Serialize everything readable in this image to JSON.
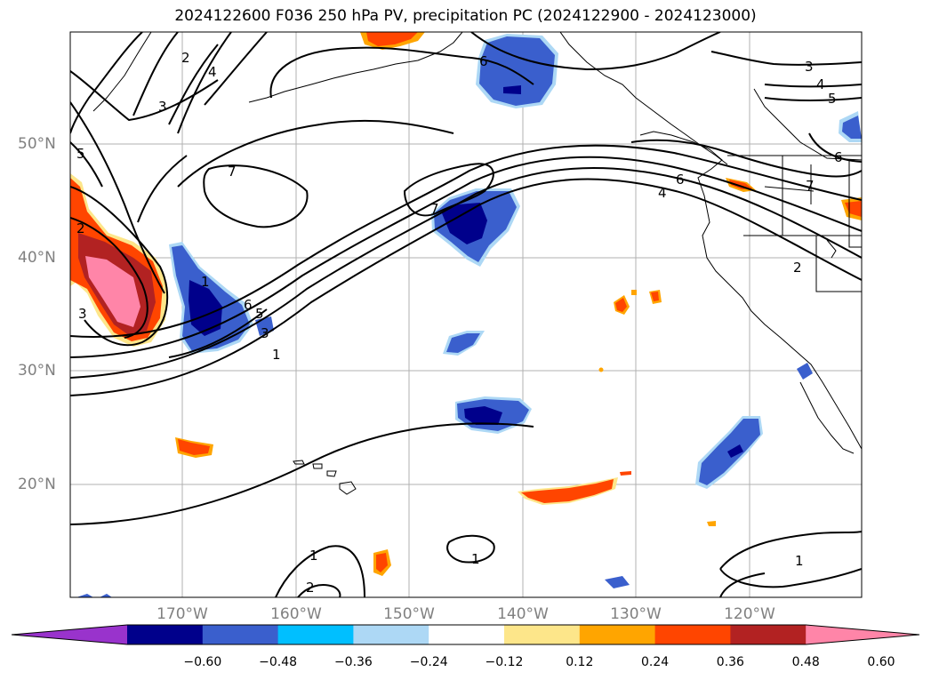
{
  "title": "2024122600 F036 250 hPa PV, precipitation PC (2024122900 - 2024123000)",
  "lat_labels": [
    "50°N",
    "40°N",
    "30°N",
    "20°N"
  ],
  "lon_labels": [
    "170°W",
    "160°W",
    "150°W",
    "140°W",
    "130°W",
    "120°W"
  ],
  "colorbar": {
    "ticks": [
      "−0.60",
      "−0.48",
      "−0.36",
      "−0.24",
      "−0.12",
      "0.12",
      "0.24",
      "0.36",
      "0.48",
      "0.60"
    ],
    "colors": [
      "#9933cc",
      "#00008b",
      "#3a5fcd",
      "#00bfff",
      "#add8f5",
      "#ffffff",
      "#fde68a",
      "#ffa500",
      "#ff4500",
      "#b22222",
      "#ff85a8"
    ]
  },
  "contour_labels": [
    "2",
    "4",
    "3",
    "5",
    "7",
    "1",
    "6",
    "7",
    "5",
    "3",
    "1",
    "1",
    "2",
    "2",
    "3",
    "6",
    "3",
    "4",
    "5",
    "6",
    "4",
    "6",
    "7",
    "1",
    "1",
    "2"
  ]
}
